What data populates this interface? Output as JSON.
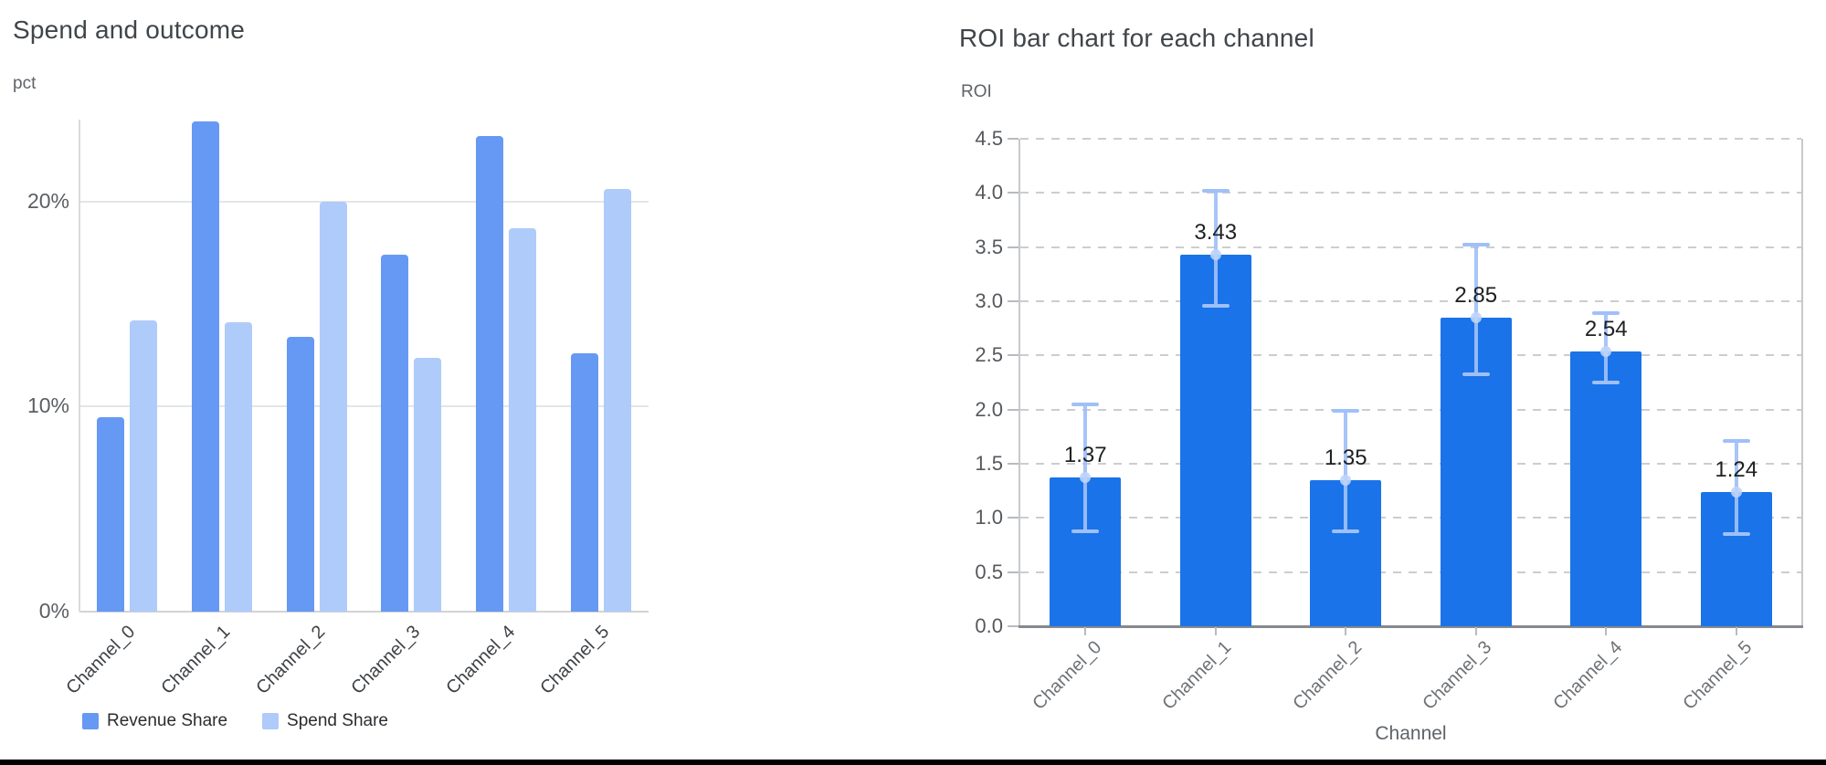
{
  "page": {
    "background": "#ffffff",
    "bottom_rule_color": "#000000"
  },
  "chart_data": [
    {
      "type": "bar",
      "title": "Spend and outcome",
      "ylabel": "pct",
      "xlabel": "",
      "categories": [
        "Channel_0",
        "Channel_1",
        "Channel_2",
        "Channel_3",
        "Channel_4",
        "Channel_5"
      ],
      "series": [
        {
          "name": "Revenue Share",
          "color": "#6699F3",
          "values": [
            9.5,
            23.9,
            13.4,
            17.4,
            23.2,
            12.6
          ]
        },
        {
          "name": "Spend Share",
          "color": "#AECBFA",
          "values": [
            14.2,
            14.1,
            20.0,
            12.4,
            18.7,
            20.6
          ]
        }
      ],
      "ylim": [
        0,
        24
      ],
      "yticks": [
        {
          "value": 0,
          "label": "0%"
        },
        {
          "value": 10,
          "label": "10%"
        },
        {
          "value": 20,
          "label": "20%"
        }
      ],
      "grid": "horizontal-solid",
      "legend_position": "bottom-left",
      "units": "percent"
    },
    {
      "type": "bar",
      "title": "ROI bar chart for each channel",
      "ylabel": "ROI",
      "xlabel": "Channel",
      "categories": [
        "Channel_0",
        "Channel_1",
        "Channel_2",
        "Channel_3",
        "Channel_4",
        "Channel_5"
      ],
      "values": [
        1.37,
        3.43,
        1.35,
        2.85,
        2.54,
        1.24
      ],
      "value_labels": [
        "1.37",
        "3.43",
        "1.35",
        "2.85",
        "2.54",
        "1.24"
      ],
      "error_bars": [
        {
          "low": 0.88,
          "high": 2.05
        },
        {
          "low": 2.96,
          "high": 4.02
        },
        {
          "low": 0.88,
          "high": 1.99
        },
        {
          "low": 2.33,
          "high": 3.52
        },
        {
          "low": 2.25,
          "high": 2.89
        },
        {
          "low": 0.85,
          "high": 1.71
        }
      ],
      "bar_color": "#1A73E8",
      "error_color": "#9FC0F8",
      "ylim": [
        0,
        4.5
      ],
      "ytick_step": 0.5,
      "grid": "horizontal-dashed",
      "legend_position": "none"
    }
  ]
}
